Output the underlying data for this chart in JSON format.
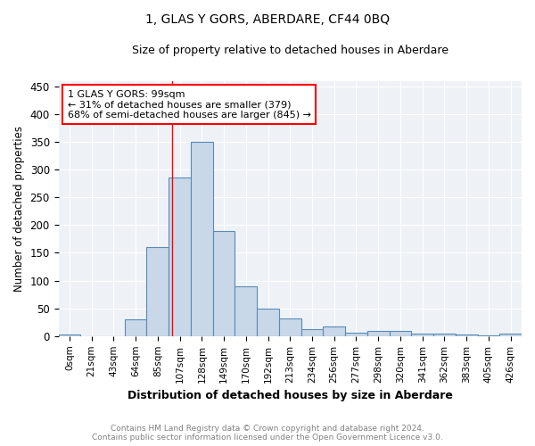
{
  "title": "1, GLAS Y GORS, ABERDARE, CF44 0BQ",
  "subtitle": "Size of property relative to detached houses in Aberdare",
  "xlabel": "Distribution of detached houses by size in Aberdare",
  "ylabel": "Number of detached properties",
  "categories": [
    "0sqm",
    "21sqm",
    "43sqm",
    "64sqm",
    "85sqm",
    "107sqm",
    "128sqm",
    "149sqm",
    "170sqm",
    "192sqm",
    "213sqm",
    "234sqm",
    "256sqm",
    "277sqm",
    "298sqm",
    "320sqm",
    "341sqm",
    "362sqm",
    "383sqm",
    "405sqm",
    "426sqm"
  ],
  "values": [
    3,
    0,
    0,
    30,
    160,
    285,
    350,
    190,
    90,
    50,
    32,
    13,
    18,
    6,
    10,
    10,
    5,
    5,
    3,
    2,
    5
  ],
  "bar_color": "#c8d8e8",
  "bar_edge_color": "#5a8ab5",
  "annotation_text_line1": "1 GLAS Y GORS: 99sqm",
  "annotation_text_line2": "← 31% of detached houses are smaller (379)",
  "annotation_text_line3": "68% of semi-detached houses are larger (845) →",
  "footer_line1": "Contains HM Land Registry data © Crown copyright and database right 2024.",
  "footer_line2": "Contains public sector information licensed under the Open Government Licence v3.0.",
  "ylim": [
    0,
    460
  ],
  "yticks": [
    0,
    50,
    100,
    150,
    200,
    250,
    300,
    350,
    400,
    450
  ],
  "background_color": "#eef2f7",
  "plot_background_color": "#ffffff",
  "red_line_x": 4.636
}
